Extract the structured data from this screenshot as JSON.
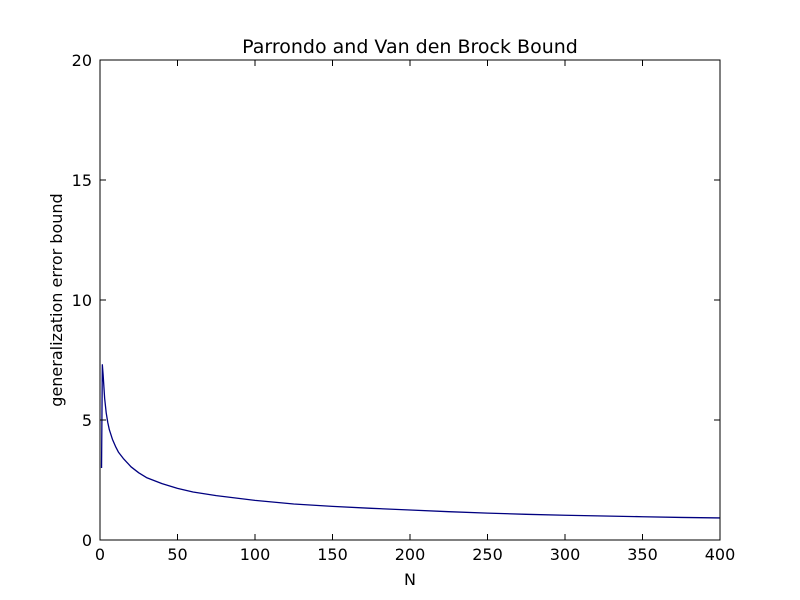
{
  "chart_data": {
    "type": "line",
    "title": "Parrondo and Van den Brock Bound",
    "xlabel": "N",
    "ylabel": "generalization error bound",
    "xlim": [
      0,
      400
    ],
    "ylim": [
      0,
      20
    ],
    "xticks": [
      "0",
      "50",
      "100",
      "150",
      "200",
      "250",
      "300",
      "350",
      "400"
    ],
    "yticks": [
      "0",
      "5",
      "10",
      "15",
      "20"
    ],
    "grid": false,
    "legend": "none",
    "series": [
      {
        "color": "#000080",
        "x": [
          1,
          1.5,
          2,
          3,
          4,
          5,
          6,
          8,
          10,
          12,
          15,
          20,
          25,
          30,
          40,
          50,
          60,
          75,
          100,
          125,
          150,
          175,
          200,
          225,
          250,
          275,
          300,
          325,
          350,
          375,
          400
        ],
        "y": [
          3.0,
          7.3,
          6.9,
          5.9,
          5.3,
          4.9,
          4.6,
          4.2,
          3.9,
          3.65,
          3.4,
          3.05,
          2.8,
          2.6,
          2.35,
          2.15,
          2.0,
          1.85,
          1.65,
          1.5,
          1.4,
          1.32,
          1.25,
          1.18,
          1.12,
          1.07,
          1.03,
          1.0,
          0.97,
          0.94,
          0.92
        ]
      }
    ]
  }
}
